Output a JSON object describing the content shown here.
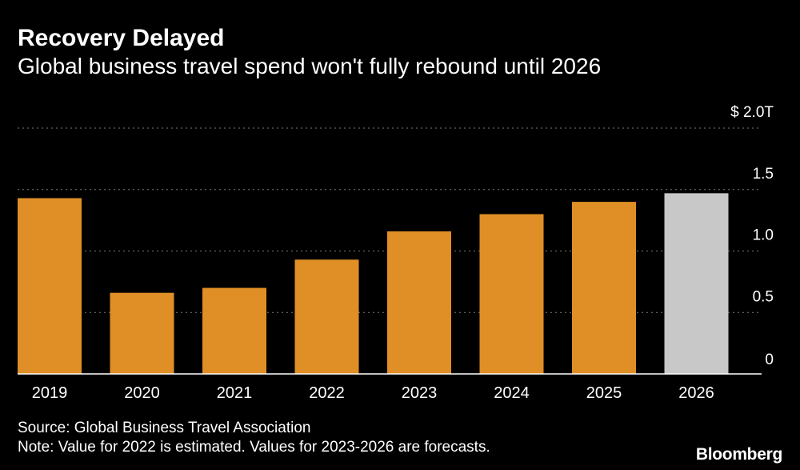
{
  "header": {
    "title": "Recovery Delayed",
    "subtitle": "Global business travel spend won't fully rebound until 2026"
  },
  "footer": {
    "source": "Source: Global Business Travel Association",
    "note": "Note: Value for 2022 is estimated. Values for 2023-2026 are forecasts.",
    "logo": "Bloomberg"
  },
  "colors": {
    "background": "#000000",
    "bar": "#e08f26",
    "forecast_highlight": "#c8c8c8",
    "grid": "#7a7a7a",
    "text": "#ffffff"
  },
  "chart_data": {
    "type": "bar",
    "title": "Recovery Delayed",
    "subtitle": "Global business travel spend won't fully rebound until 2026",
    "xlabel": "",
    "ylabel": "",
    "categories": [
      "2019",
      "2020",
      "2021",
      "2022",
      "2023",
      "2024",
      "2025",
      "2026"
    ],
    "values": [
      1.43,
      0.66,
      0.7,
      0.93,
      1.16,
      1.3,
      1.4,
      1.47
    ],
    "highlight_category": "2026",
    "ylim": [
      0,
      2.0
    ],
    "yticks": [
      0,
      0.5,
      1.0,
      1.5,
      2.0
    ],
    "ytick_labels": [
      "0",
      "0.5",
      "1.0",
      "1.5",
      "$ 2.0T"
    ],
    "y_axis_position": "right",
    "grid": true
  }
}
